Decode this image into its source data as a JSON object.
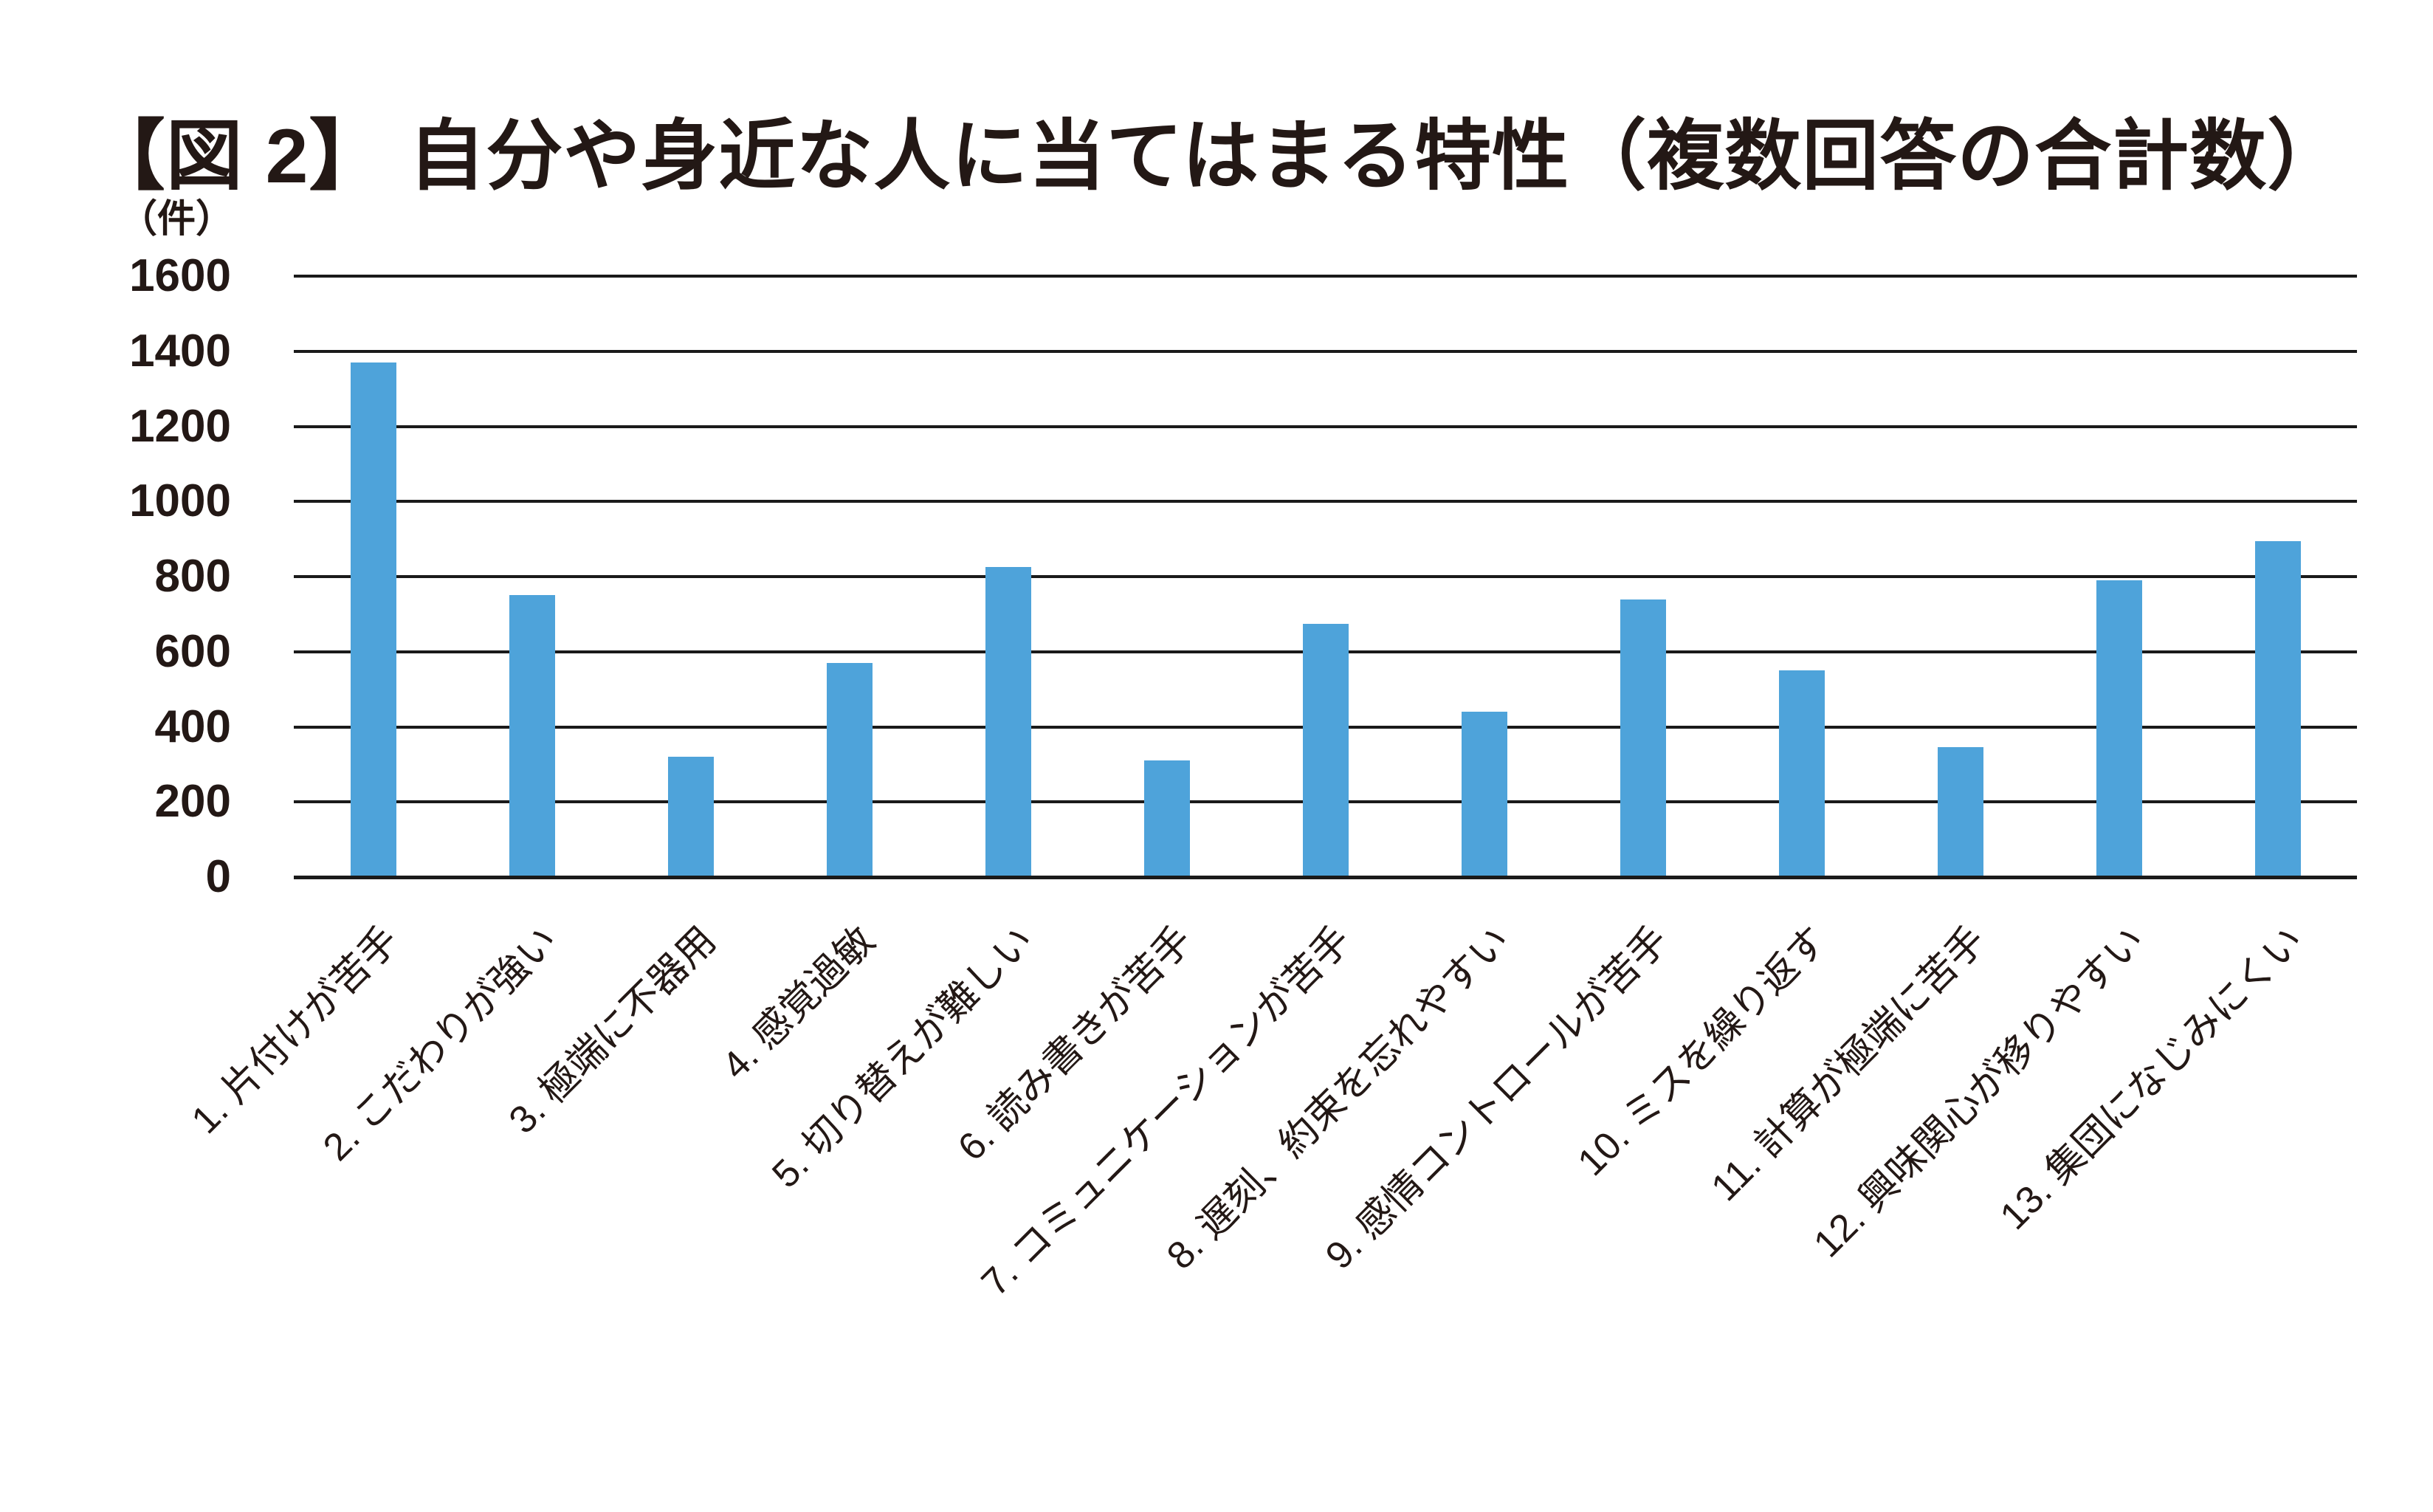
{
  "title": "【図 2】 自分や身近な人に当てはまる特性（複数回答の合計数）",
  "chart_data": {
    "type": "bar",
    "title": "【図 2】 自分や身近な人に当てはまる特性（複数回答の合計数）",
    "ylabel": "（件）",
    "xlabel": "",
    "ylim": [
      0,
      1600
    ],
    "ytick_step": 200,
    "yticks": [
      1600,
      1400,
      1200,
      1000,
      800,
      600,
      400,
      200,
      0
    ],
    "grid": true,
    "legend_position": "none",
    "bar_color": "#4EA3DA",
    "axis_color": "#1A1A1A",
    "text_color": "#231815",
    "categories": [
      "1. 片付けが苦手",
      "2. こだわりが強い",
      "3. 極端に不器用",
      "4. 感覚過敏",
      "5. 切り替えが難しい",
      "6. 読み書きが苦手",
      "7. コミュニケーションが苦手",
      "8. 遅刻、約束を忘れやすい",
      "9. 感情コントロールが苦手",
      "10. ミスを繰り返す",
      "11. 計算が極端に苦手",
      "12. 興味関心が移りやすい",
      "13. 集団になじみにくい"
    ],
    "values": [
      1370,
      750,
      320,
      570,
      825,
      310,
      675,
      440,
      740,
      550,
      345,
      790,
      895
    ]
  }
}
